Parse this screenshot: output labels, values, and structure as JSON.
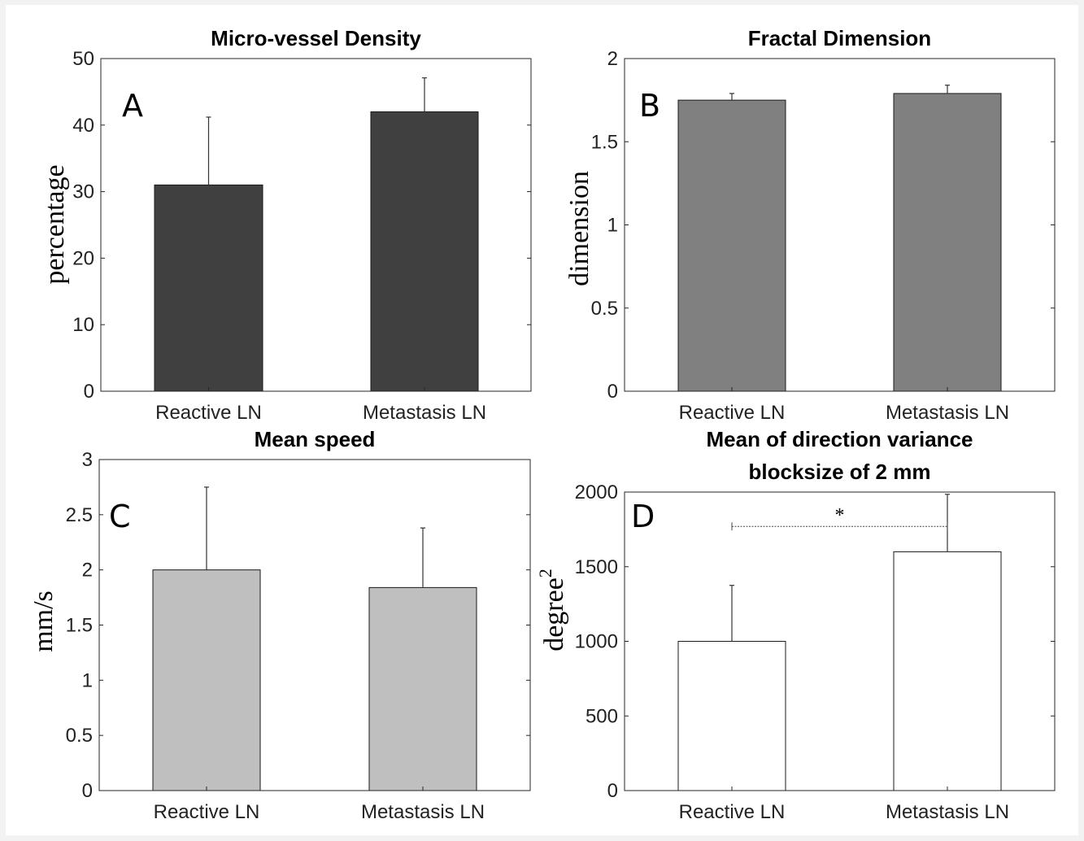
{
  "figure": {
    "background": "#ffffff",
    "axis_color": "#262626"
  },
  "chart_data": [
    {
      "type": "bar",
      "panel": "A",
      "title": [
        "Micro-vessel Density"
      ],
      "xlabel": "",
      "ylabel": "percentage",
      "categories": [
        "Reactive LN",
        "Metastasis LN"
      ],
      "values": [
        31,
        42
      ],
      "errors": [
        10.2,
        5.1
      ],
      "ylim": [
        0,
        50
      ],
      "yticks": [
        0,
        10,
        20,
        30,
        40,
        50
      ],
      "bar_color": "#404040",
      "grid": false
    },
    {
      "type": "bar",
      "panel": "B",
      "title": [
        "Fractal Dimension"
      ],
      "xlabel": "",
      "ylabel": "dimension",
      "categories": [
        "Reactive LN",
        "Metastasis LN"
      ],
      "values": [
        1.75,
        1.79
      ],
      "errors": [
        0.04,
        0.05
      ],
      "ylim": [
        0,
        2
      ],
      "yticks": [
        "0",
        "0.5",
        "1",
        "1.5",
        "2"
      ],
      "bar_color": "#808080",
      "grid": false
    },
    {
      "type": "bar",
      "panel": "C",
      "title": [
        "Mean speed"
      ],
      "xlabel": "",
      "ylabel": "mm/s",
      "categories": [
        "Reactive LN",
        "Metastasis LN"
      ],
      "values": [
        2.0,
        1.84
      ],
      "errors": [
        0.75,
        0.54
      ],
      "ylim": [
        0,
        3
      ],
      "yticks": [
        "0",
        "0.5",
        "1",
        "1.5",
        "2",
        "2.5",
        "3"
      ],
      "bar_color": "#bfbfbf",
      "grid": false
    },
    {
      "type": "bar",
      "panel": "D",
      "title": [
        "Mean of direction variance",
        "blocksize of 2 mm"
      ],
      "xlabel": "",
      "ylabel": "degree",
      "ylabel_superscript": "2",
      "categories": [
        "Reactive LN",
        "Metastasis LN"
      ],
      "values": [
        1000,
        1600
      ],
      "errors": [
        375,
        385
      ],
      "ylim": [
        0,
        2000
      ],
      "yticks": [
        "0",
        "500",
        "1000",
        "1500",
        "2000"
      ],
      "bar_color": "#ffffff",
      "significance": {
        "label": "*",
        "y": 1770
      },
      "grid": false
    }
  ]
}
